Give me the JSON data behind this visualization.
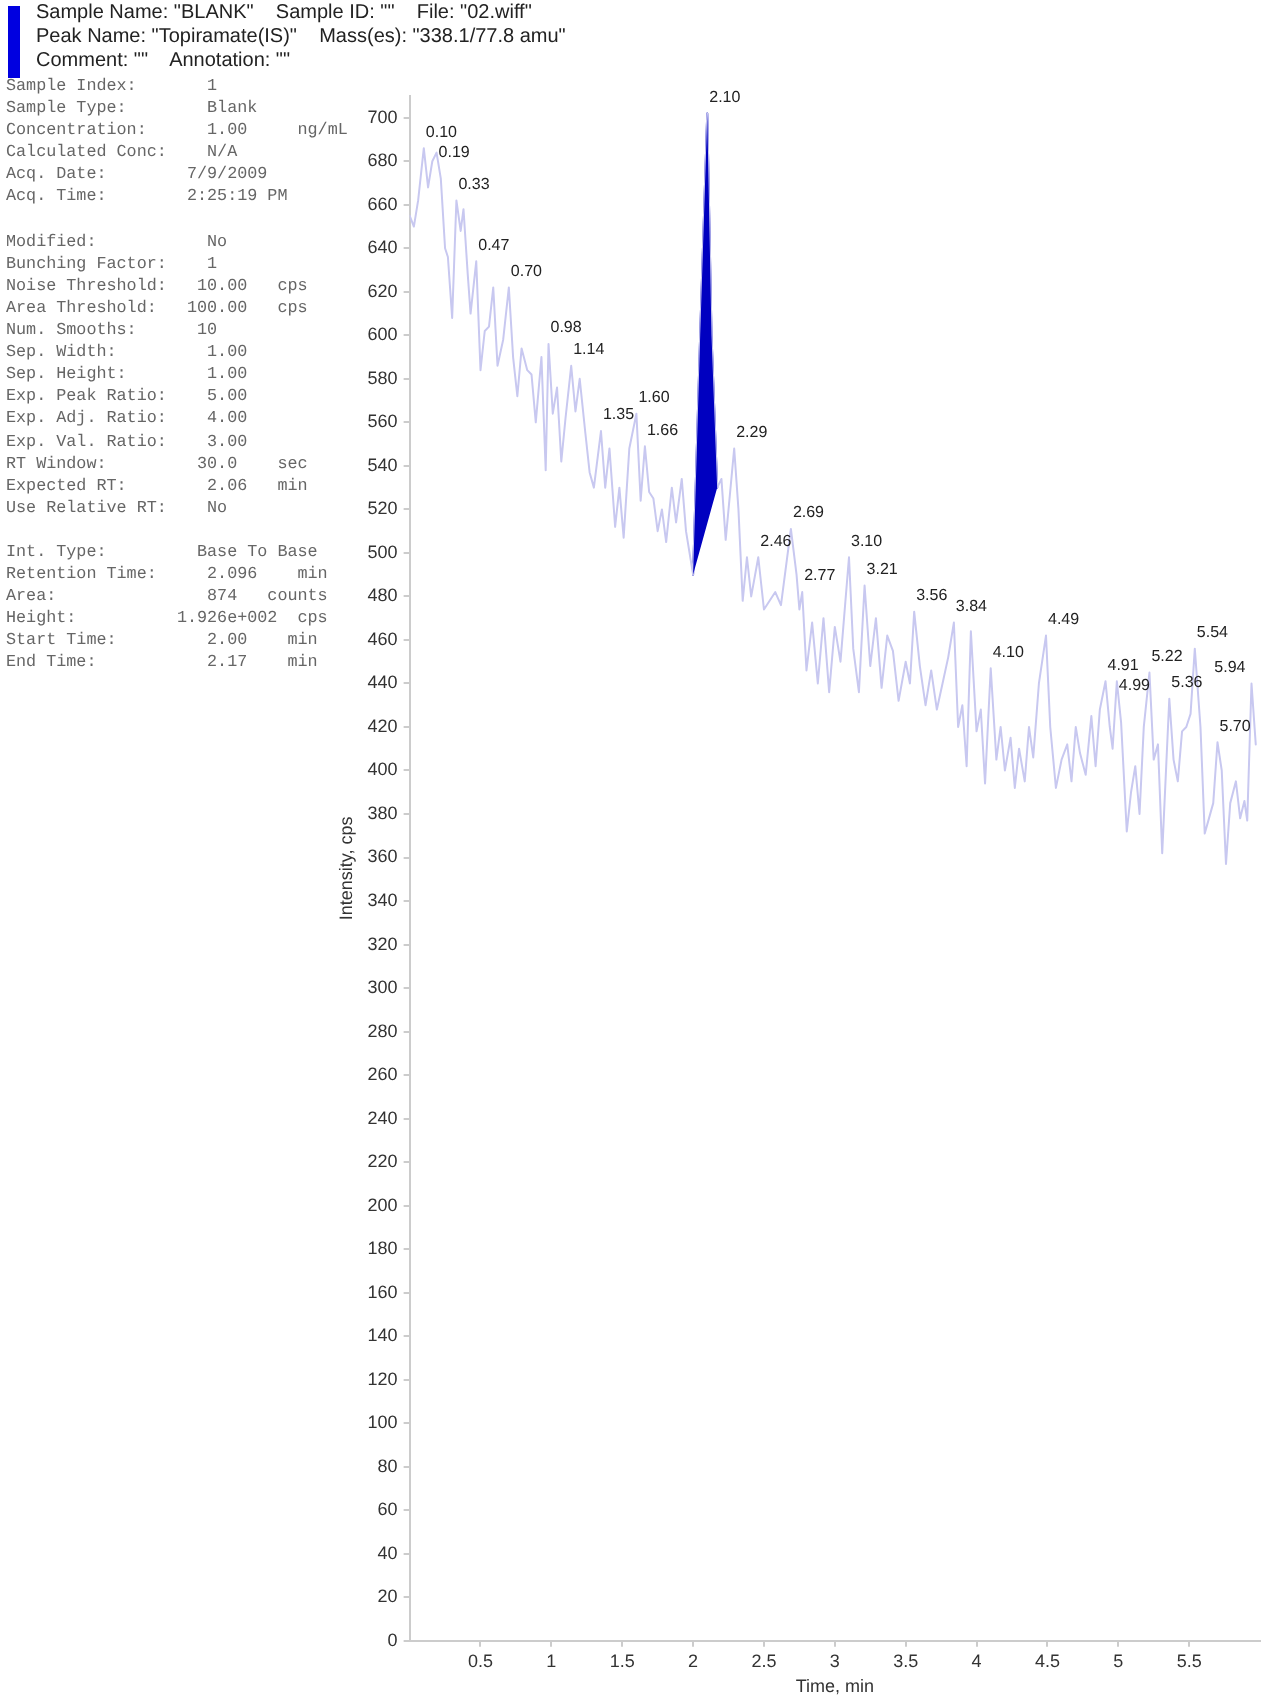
{
  "chart_data": {
    "type": "line",
    "title": "Sample Name: \"BLANK\"    Sample ID: \"\"    File: \"02.wiff\"",
    "subtitle": "Peak Name: \"Topiramate(IS)\"    Mass(es): \"338.1/77.8 amu\"\nComment: \"\"    Annotation: \"\"",
    "xlabel": "Time, min",
    "ylabel": "Intensity, cps",
    "xlim": [
      0,
      6.0
    ],
    "xticks": [
      0.5,
      1.0,
      1.5,
      2.0,
      2.5,
      3.0,
      3.5,
      4.0,
      4.5,
      5.0,
      5.5
    ],
    "ylim": [
      0,
      710
    ],
    "yticks": [
      0,
      20,
      40,
      60,
      80,
      100,
      120,
      140,
      160,
      180,
      200,
      220,
      240,
      260,
      280,
      300,
      320,
      340,
      360,
      380,
      400,
      420,
      440,
      460,
      480,
      500,
      520,
      540,
      560,
      580,
      600,
      620,
      640,
      660,
      680,
      700
    ],
    "grid": false,
    "legend": false,
    "marker": "none",
    "line_style": "solid",
    "series": [
      {
        "type": "line",
        "color": "#c8c8f0",
        "x": [
          0.0,
          0.03,
          0.06,
          0.1,
          0.13,
          0.16,
          0.19,
          0.22,
          0.25,
          0.27,
          0.3,
          0.33,
          0.36,
          0.38,
          0.41,
          0.43,
          0.47,
          0.5,
          0.53,
          0.56,
          0.59,
          0.62,
          0.66,
          0.7,
          0.73,
          0.76,
          0.79,
          0.83,
          0.86,
          0.89,
          0.93,
          0.96,
          0.98,
          1.01,
          1.04,
          1.07,
          1.1,
          1.14,
          1.17,
          1.2,
          1.24,
          1.27,
          1.3,
          1.35,
          1.38,
          1.41,
          1.45,
          1.48,
          1.51,
          1.55,
          1.6,
          1.63,
          1.66,
          1.69,
          1.72,
          1.75,
          1.78,
          1.81,
          1.85,
          1.88,
          1.92,
          1.95,
          2.0,
          2.05,
          2.1,
          2.13,
          2.17,
          2.2,
          2.23,
          2.29,
          2.32,
          2.35,
          2.38,
          2.41,
          2.46,
          2.5,
          2.54,
          2.58,
          2.62,
          2.69,
          2.73,
          2.75,
          2.77,
          2.8,
          2.84,
          2.88,
          2.92,
          2.96,
          3.0,
          3.04,
          3.1,
          3.13,
          3.17,
          3.21,
          3.25,
          3.29,
          3.33,
          3.37,
          3.41,
          3.45,
          3.5,
          3.53,
          3.56,
          3.6,
          3.64,
          3.68,
          3.72,
          3.76,
          3.8,
          3.84,
          3.87,
          3.9,
          3.93,
          3.96,
          4.0,
          4.03,
          4.06,
          4.1,
          4.14,
          4.17,
          4.2,
          4.24,
          4.27,
          4.3,
          4.34,
          4.37,
          4.4,
          4.44,
          4.49,
          4.52,
          4.56,
          4.6,
          4.64,
          4.67,
          4.7,
          4.73,
          4.77,
          4.81,
          4.84,
          4.87,
          4.91,
          4.94,
          4.96,
          4.99,
          5.02,
          5.06,
          5.09,
          5.12,
          5.15,
          5.18,
          5.22,
          5.25,
          5.28,
          5.31,
          5.36,
          5.39,
          5.42,
          5.45,
          5.48,
          5.51,
          5.54,
          5.58,
          5.61,
          5.64,
          5.67,
          5.7,
          5.73,
          5.76,
          5.79,
          5.83,
          5.86,
          5.89,
          5.91,
          5.94,
          5.97
        ],
        "values": [
          655,
          650,
          662,
          686,
          668,
          680,
          684,
          672,
          640,
          636,
          608,
          662,
          648,
          658,
          628,
          610,
          634,
          584,
          602,
          604,
          622,
          586,
          598,
          622,
          590,
          572,
          594,
          584,
          582,
          560,
          590,
          538,
          596,
          564,
          576,
          542,
          562,
          586,
          565,
          580,
          555,
          537,
          530,
          556,
          530,
          548,
          512,
          530,
          507,
          548,
          564,
          524,
          549,
          528,
          525,
          510,
          520,
          505,
          530,
          514,
          534,
          510,
          490,
          600,
          702,
          600,
          530,
          534,
          506,
          548,
          520,
          478,
          498,
          480,
          498,
          474,
          478,
          482,
          476,
          511,
          490,
          474,
          482,
          446,
          468,
          440,
          470,
          436,
          466,
          450,
          498,
          456,
          436,
          485,
          448,
          470,
          438,
          462,
          455,
          432,
          450,
          440,
          473,
          448,
          430,
          446,
          428,
          440,
          452,
          468,
          420,
          430,
          402,
          464,
          418,
          428,
          394,
          447,
          405,
          420,
          400,
          415,
          392,
          410,
          395,
          420,
          406,
          440,
          462,
          420,
          392,
          405,
          412,
          395,
          420,
          408,
          398,
          425,
          402,
          428,
          441,
          420,
          410,
          441,
          422,
          372,
          390,
          402,
          380,
          420,
          445,
          405,
          412,
          362,
          433,
          405,
          395,
          418,
          420,
          426,
          456,
          420,
          371,
          378,
          385,
          413,
          400,
          357,
          385,
          395,
          378,
          386,
          377,
          440,
          412
        ]
      },
      {
        "type": "area",
        "color": "#0000c0",
        "x": [
          2.0,
          2.05,
          2.1,
          2.13,
          2.17
        ],
        "values": [
          490,
          600,
          702,
          600,
          530
        ]
      }
    ],
    "annotations": [
      "Sample Index:       1\nSample Type:        Blank\nConcentration:      1.00     ng/mL\nCalculated Conc:    N/A\nAcq. Date:        7/9/2009\nAcq. Time:        2:25:19 PM",
      "Modified:           No\nBunching Factor:    1\nNoise Threshold:   10.00   cps\nArea Threshold:   100.00   cps\nNum. Smooths:      10\nSep. Width:         1.00\nSep. Height:        1.00\nExp. Peak Ratio:    5.00\nExp. Adj. Ratio:    4.00\nExp. Val. Ratio:    3.00\nRT Window:         30.0    sec\nExpected RT:        2.06   min\nUse Relative RT:    No",
      "Int. Type:         Base To Base\nRetention Time:     2.096    min\nArea:               874   counts\nHeight:          1.926e+002  cps\nStart Time:         2.00    min\nEnd Time:           2.17    min",
      {
        "text": "0.10",
        "x": 0.1,
        "y": 686
      },
      {
        "text": "0.19",
        "x": 0.19,
        "y": 684
      },
      {
        "text": "0.33",
        "x": 0.33,
        "y": 662
      },
      {
        "text": "0.47",
        "x": 0.47,
        "y": 634
      },
      {
        "text": "0.70",
        "x": 0.7,
        "y": 622
      },
      {
        "text": "0.98",
        "x": 0.98,
        "y": 596
      },
      {
        "text": "1.14",
        "x": 1.14,
        "y": 586
      },
      {
        "text": "1.35",
        "x": 1.35,
        "y": 556
      },
      {
        "text": "1.60",
        "x": 1.6,
        "y": 564
      },
      {
        "text": "1.66",
        "x": 1.66,
        "y": 549
      },
      {
        "text": "2.10",
        "x": 2.1,
        "y": 702
      },
      {
        "text": "2.29",
        "x": 2.29,
        "y": 548
      },
      {
        "text": "2.46",
        "x": 2.46,
        "y": 498
      },
      {
        "text": "2.69",
        "x": 2.69,
        "y": 511
      },
      {
        "text": "2.77",
        "x": 2.77,
        "y": 482
      },
      {
        "text": "3.10",
        "x": 3.1,
        "y": 498
      },
      {
        "text": "3.21",
        "x": 3.21,
        "y": 485
      },
      {
        "text": "3.56",
        "x": 3.56,
        "y": 473
      },
      {
        "text": "3.84",
        "x": 3.84,
        "y": 468
      },
      {
        "text": "4.10",
        "x": 4.1,
        "y": 447
      },
      {
        "text": "4.49",
        "x": 4.49,
        "y": 462
      },
      {
        "text": "4.91",
        "x": 4.91,
        "y": 441
      },
      {
        "text": "4.99",
        "x": 4.99,
        "y": 441
      },
      {
        "text": "5.22",
        "x": 5.22,
        "y": 445
      },
      {
        "text": "5.36",
        "x": 5.36,
        "y": 433
      },
      {
        "text": "5.54",
        "x": 5.54,
        "y": 456
      },
      {
        "text": "5.70",
        "x": 5.7,
        "y": 413
      },
      {
        "text": "5.94",
        "x": 5.94,
        "y": 440
      }
    ]
  }
}
